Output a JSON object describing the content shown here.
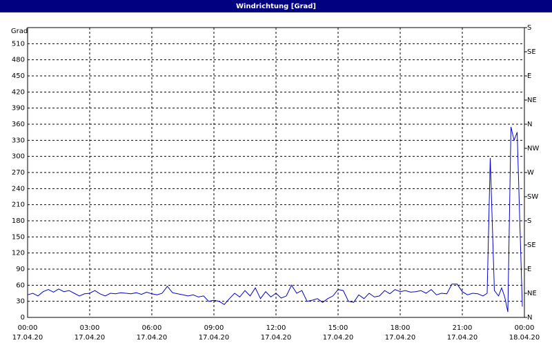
{
  "chart_data": {
    "type": "line",
    "title": "Windrichtung [Grad]",
    "y_label": "Grad",
    "xlim": [
      0,
      24
    ],
    "ylim": [
      0,
      540
    ],
    "y2lim": [
      0,
      540
    ],
    "grid": true,
    "xticks": [
      {
        "value": 0,
        "label": "00:00"
      },
      {
        "value": 3,
        "label": "03:00"
      },
      {
        "value": 6,
        "label": "06:00"
      },
      {
        "value": 9,
        "label": "09:00"
      },
      {
        "value": 12,
        "label": "12:00"
      },
      {
        "value": 15,
        "label": "15:00"
      },
      {
        "value": 18,
        "label": "18:00"
      },
      {
        "value": 21,
        "label": "21:00"
      },
      {
        "value": 24,
        "label": "00:00"
      }
    ],
    "xtick_dates": [
      "17.04.20",
      "17.04.20",
      "17.04.20",
      "17.04.20",
      "17.04.20",
      "17.04.20",
      "17.04.20",
      "17.04.20",
      "18.04.20"
    ],
    "yticks": [
      0,
      30,
      60,
      90,
      120,
      150,
      180,
      210,
      240,
      270,
      300,
      330,
      360,
      390,
      420,
      450,
      480,
      510
    ],
    "y2ticks": [
      {
        "value": 0,
        "label": "N"
      },
      {
        "value": 45,
        "label": "NE"
      },
      {
        "value": 90,
        "label": "E"
      },
      {
        "value": 135,
        "label": "SE"
      },
      {
        "value": 180,
        "label": "S"
      },
      {
        "value": 225,
        "label": "SW"
      },
      {
        "value": 270,
        "label": "W"
      },
      {
        "value": 315,
        "label": "NW"
      },
      {
        "value": 360,
        "label": "N"
      },
      {
        "value": 405,
        "label": "NE"
      },
      {
        "value": 450,
        "label": "E"
      },
      {
        "value": 495,
        "label": "SE"
      },
      {
        "value": 540,
        "label": "S"
      }
    ],
    "series": [
      {
        "color": "#0000cc",
        "x": [
          0,
          0.25,
          0.5,
          0.75,
          1,
          1.25,
          1.5,
          1.75,
          2,
          2.25,
          2.5,
          2.75,
          3,
          3.25,
          3.5,
          3.75,
          4,
          4.25,
          4.5,
          4.75,
          5,
          5.25,
          5.5,
          5.75,
          6,
          6.25,
          6.5,
          6.75,
          7,
          7.25,
          7.5,
          7.75,
          8,
          8.25,
          8.5,
          8.75,
          9,
          9.25,
          9.5,
          9.75,
          10,
          10.25,
          10.5,
          10.75,
          11,
          11.25,
          11.5,
          11.75,
          12,
          12.25,
          12.5,
          12.75,
          13,
          13.25,
          13.5,
          13.75,
          14,
          14.25,
          14.5,
          14.75,
          15,
          15.25,
          15.5,
          15.75,
          16,
          16.25,
          16.5,
          16.75,
          17,
          17.25,
          17.5,
          17.75,
          18,
          18.25,
          18.5,
          18.75,
          19,
          19.25,
          19.5,
          19.75,
          20,
          20.25,
          20.5,
          20.75,
          21,
          21.25,
          21.5,
          21.75,
          22,
          22.2,
          22.35,
          22.55,
          22.75,
          22.9,
          23.05,
          23.2,
          23.35,
          23.5,
          23.65,
          23.8,
          23.9
        ],
        "values": [
          42,
          45,
          40,
          48,
          52,
          47,
          53,
          48,
          50,
          45,
          40,
          44,
          45,
          50,
          44,
          40,
          45,
          44,
          46,
          45,
          44,
          46,
          43,
          47,
          44,
          42,
          45,
          58,
          46,
          44,
          42,
          40,
          42,
          38,
          40,
          30,
          32,
          30,
          24,
          35,
          45,
          38,
          50,
          40,
          55,
          35,
          48,
          38,
          45,
          36,
          40,
          60,
          45,
          50,
          30,
          32,
          35,
          28,
          35,
          40,
          52,
          50,
          30,
          28,
          42,
          35,
          45,
          38,
          40,
          50,
          44,
          52,
          48,
          50,
          47,
          48,
          50,
          45,
          52,
          42,
          45,
          44,
          62,
          62,
          48,
          42,
          45,
          44,
          40,
          45,
          297,
          50,
          40,
          55,
          38,
          10,
          355,
          330,
          345,
          150,
          20
        ]
      }
    ]
  }
}
